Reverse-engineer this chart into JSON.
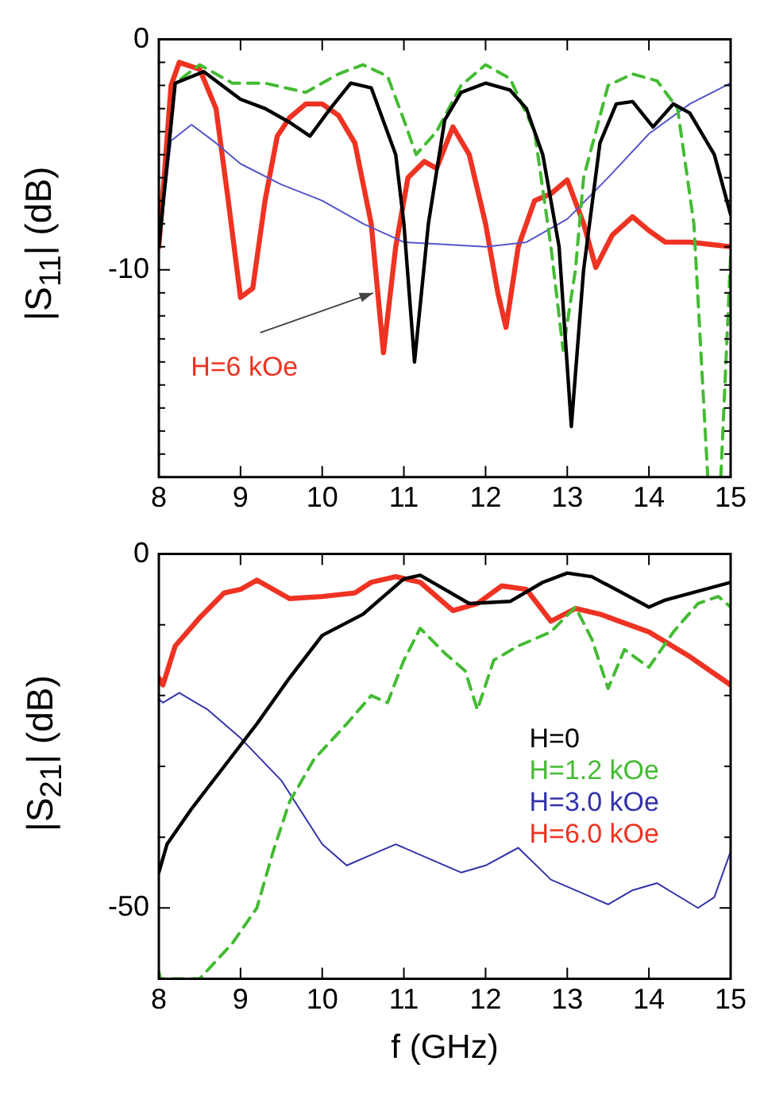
{
  "chart_data": [
    {
      "type": "line",
      "ylabel": "|S$_{11}$| (dB)",
      "xlim": [
        8,
        15
      ],
      "ylim": [
        -19,
        0
      ],
      "xticks": [
        8,
        9,
        10,
        11,
        12,
        13,
        14,
        15
      ],
      "yticks": [
        0,
        {
          "value": -1,
          "label": null
        },
        {
          "value": -2,
          "label": null
        },
        {
          "value": -3,
          "label": null
        },
        {
          "value": -4,
          "label": null
        },
        {
          "value": -5,
          "label": null
        },
        {
          "value": -6,
          "label": null
        },
        {
          "value": -7,
          "label": null
        },
        {
          "value": -8,
          "label": null
        },
        {
          "value": -9,
          "label": null
        },
        -10,
        {
          "value": -11,
          "label": null
        },
        {
          "value": -12,
          "label": null
        },
        {
          "value": -13,
          "label": null
        },
        {
          "value": -14,
          "label": null
        },
        {
          "value": -15,
          "label": null
        },
        {
          "value": -16,
          "label": null
        },
        {
          "value": -17,
          "label": null
        },
        {
          "value": -18,
          "label": null
        },
        {
          "value": -19,
          "label": null
        }
      ],
      "annotations": [
        {
          "text": "H=6 kOe",
          "x": 10.7,
          "y": -10.8
        }
      ],
      "series": [
        {
          "color": "#000000",
          "line_style": "solid",
          "x": [
            8,
            8.2,
            8.55,
            9,
            9.3,
            9.6,
            9.85,
            10.1,
            10.35,
            10.6,
            10.9,
            11,
            11.13,
            11.3,
            11.5,
            11.7,
            12,
            12.3,
            12.5,
            12.7,
            12.9,
            13.05,
            13.2,
            13.4,
            13.6,
            13.8,
            14.05,
            14.3,
            14.5,
            14.8,
            15
          ],
          "values": [
            -9,
            -1.9,
            -1.4,
            -2.6,
            -3,
            -3.6,
            -4.2,
            -3,
            -1.9,
            -2.1,
            -5,
            -8,
            -14,
            -8,
            -3.5,
            -2.3,
            -1.9,
            -2.2,
            -3,
            -5,
            -9,
            -16.8,
            -10,
            -4.5,
            -2.8,
            -2.7,
            -3.8,
            -2.8,
            -3.2,
            -5,
            -7.6
          ]
        },
        {
          "color": "#44bb33",
          "line_style": "dashed",
          "x": [
            8,
            8.2,
            8.5,
            8.9,
            9.3,
            9.8,
            10.2,
            10.5,
            10.8,
            11,
            11.15,
            11.4,
            11.7,
            12,
            12.3,
            12.6,
            12.8,
            12.95,
            13.1,
            13.2,
            13.5,
            13.8,
            14.1,
            14.35,
            14.55,
            14.72,
            14.8,
            14.88,
            15
          ],
          "values": [
            -9,
            -1.9,
            -1.1,
            -1.9,
            -1.9,
            -2.3,
            -1.5,
            -1.1,
            -1.6,
            -3.5,
            -5,
            -4,
            -2,
            -1.1,
            -1.7,
            -4,
            -9,
            -13.5,
            -10,
            -6,
            -2,
            -1.5,
            -1.8,
            -3,
            -8,
            -19,
            null,
            -19,
            -9.4
          ]
        },
        {
          "color": "#5555cc",
          "line_style": "solid",
          "x": [
            8,
            8.15,
            8.4,
            8.7,
            9,
            9.5,
            10,
            10.5,
            11,
            11.5,
            12,
            12.5,
            13,
            13.5,
            14,
            14.5,
            15
          ],
          "values": [
            -9,
            -4.4,
            -3.7,
            -4.5,
            -5.4,
            -6.3,
            -7,
            -8,
            -8.8,
            -8.9,
            -9,
            -8.8,
            -7.8,
            -6,
            -4.1,
            -2.8,
            -1.9
          ]
        },
        {
          "color": "#ee3322",
          "line_style": "solid",
          "x": [
            8,
            8.15,
            8.25,
            8.5,
            8.7,
            8.85,
            9,
            9.15,
            9.3,
            9.45,
            9.6,
            9.8,
            10,
            10.2,
            10.4,
            10.6,
            10.75,
            10.9,
            11.05,
            11.25,
            11.4,
            11.6,
            11.8,
            12,
            12.15,
            12.25,
            12.4,
            12.6,
            12.8,
            13,
            13.2,
            13.35,
            13.55,
            13.8,
            14,
            14.2,
            14.5,
            14.75,
            15
          ],
          "values": [
            -9,
            -2,
            -1,
            -1.3,
            -3,
            -7,
            -11.2,
            -10.8,
            -7,
            -4.2,
            -3.4,
            -2.8,
            -2.8,
            -3.3,
            -4.5,
            -8,
            -13.6,
            -9,
            -6,
            -5.3,
            -5.6,
            -3.8,
            -5,
            -8,
            -11,
            -12.5,
            -9,
            -7,
            -6.7,
            -6.1,
            -8,
            -9.9,
            -8.5,
            -7.7,
            -8.3,
            -8.8,
            -8.8,
            -8.9,
            -9
          ]
        }
      ]
    },
    {
      "type": "line",
      "xlabel": "f (GHz)",
      "ylabel": "|S$_{21}$| (dB)",
      "xlim": [
        8,
        15
      ],
      "ylim": [
        -60,
        0
      ],
      "xticks": [
        8,
        9,
        10,
        11,
        12,
        13,
        14,
        15
      ],
      "yticks": [
        0,
        {
          "value": -10,
          "label": null
        },
        {
          "value": -20,
          "label": null
        },
        {
          "value": -30,
          "label": null
        },
        {
          "value": -40,
          "label": null
        },
        -50,
        {
          "value": -60,
          "label": null
        }
      ],
      "series": [
        {
          "name": "H=0",
          "color": "#000000",
          "line_style": "solid",
          "x": [
            8,
            8.1,
            8.4,
            8.8,
            9.2,
            9.6,
            10,
            10.5,
            11,
            11.2,
            11.5,
            11.8,
            12.3,
            12.7,
            13,
            13.3,
            14,
            14.2,
            15
          ],
          "values": [
            -45,
            -41,
            -36,
            -30,
            -24,
            -17.5,
            -11.5,
            -8.5,
            -3.5,
            -3,
            -5,
            -7,
            -6.7,
            -4,
            -2.7,
            -3.2,
            -7.5,
            -6.5,
            -4
          ]
        },
        {
          "name": "H=1.2 kOe",
          "color": "#44bb33",
          "line_style": "dashed",
          "x": [
            8,
            8.02,
            8.5,
            8.9,
            9.2,
            9.4,
            9.6,
            9.9,
            10.3,
            10.6,
            10.8,
            11,
            11.2,
            11.5,
            11.75,
            11.9,
            12.1,
            12.4,
            12.8,
            13.1,
            13.3,
            13.5,
            13.7,
            14,
            14.3,
            14.6,
            14.85,
            15
          ],
          "values": [
            -59,
            -60,
            -60,
            -55,
            -50,
            -42,
            -35,
            -29,
            -24,
            -20,
            -21,
            -15,
            -10.5,
            -14,
            -16.5,
            -22,
            -15,
            -13,
            -11,
            -7.5,
            -12,
            -19,
            -13.5,
            -16,
            -11,
            -7,
            -6,
            -7.5
          ]
        },
        {
          "name": "H=3.0 kOe",
          "color": "#3333aa",
          "line_style": "solid",
          "x": [
            8,
            8.05,
            8.25,
            8.6,
            9,
            9.5,
            10,
            10.3,
            10.6,
            10.9,
            11.3,
            11.7,
            12,
            12.4,
            12.8,
            13.2,
            13.5,
            13.8,
            14.1,
            14.6,
            14.8,
            15
          ],
          "values": [
            -20.5,
            -21,
            -19.6,
            -22,
            -26,
            -32,
            -41,
            -44,
            -42.5,
            -41,
            -43,
            -45,
            -44,
            -41.5,
            -46,
            -48,
            -49.5,
            -47.5,
            -46.5,
            -50,
            -48.5,
            -42
          ]
        },
        {
          "name": "H=6.0 kOe",
          "color": "#ee3322",
          "line_style": "solid",
          "x": [
            8,
            8.05,
            8.2,
            8.5,
            8.8,
            9,
            9.2,
            9.6,
            10,
            10.4,
            10.6,
            10.9,
            11.2,
            11.6,
            11.9,
            12.2,
            12.5,
            12.8,
            13.1,
            13.4,
            14,
            14.5,
            15
          ],
          "values": [
            -17.5,
            -18.5,
            -13,
            -9,
            -5.5,
            -5,
            -3.7,
            -6.3,
            -6,
            -5.5,
            -4,
            -3.2,
            -4,
            -8,
            -7,
            -4.5,
            -5,
            -9.5,
            -7.7,
            -8.5,
            -11,
            -14.5,
            -18.5
          ]
        }
      ]
    }
  ]
}
